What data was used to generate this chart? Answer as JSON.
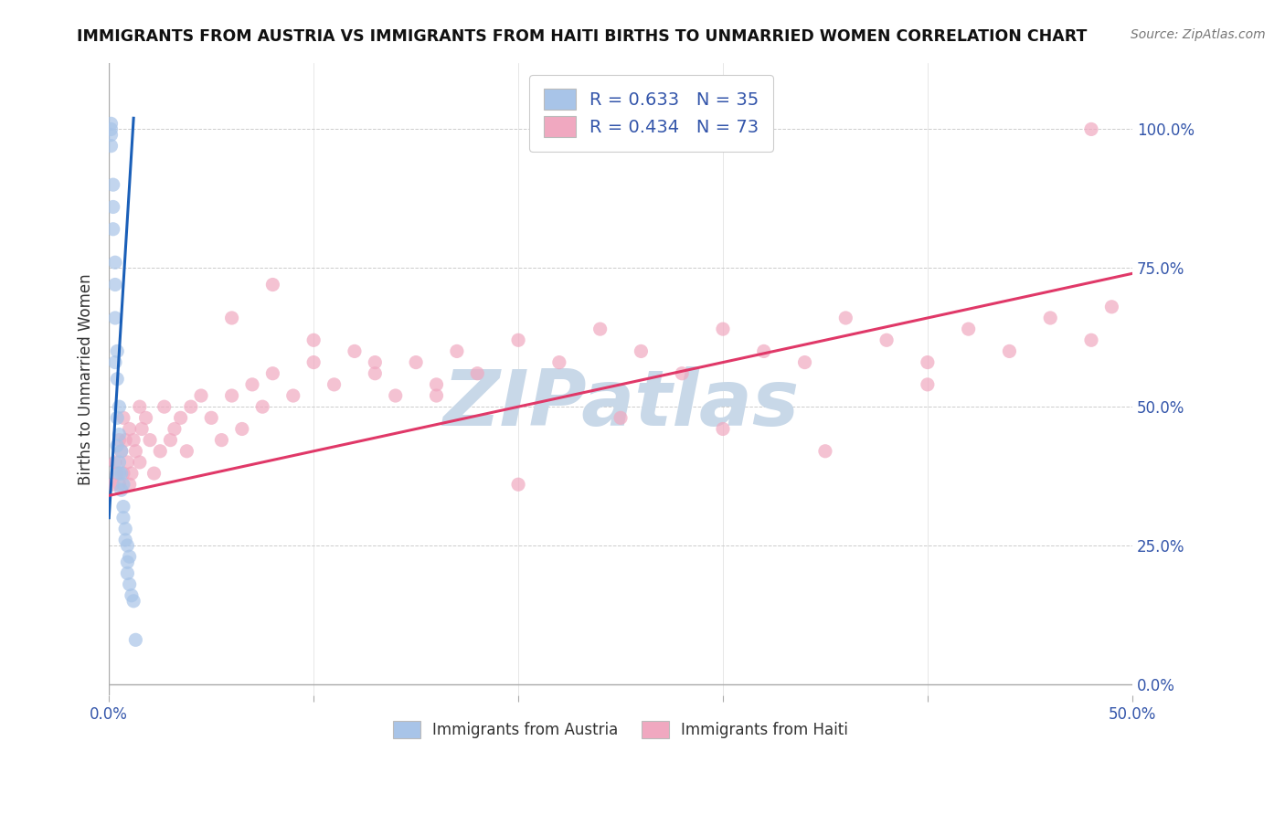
{
  "title": "IMMIGRANTS FROM AUSTRIA VS IMMIGRANTS FROM HAITI BIRTHS TO UNMARRIED WOMEN CORRELATION CHART",
  "source": "Source: ZipAtlas.com",
  "ylabel": "Births to Unmarried Women",
  "xlim": [
    0,
    0.5
  ],
  "ylim": [
    -0.02,
    1.12
  ],
  "ytick_values": [
    0,
    0.25,
    0.5,
    0.75,
    1.0
  ],
  "ytick_labels": [
    "0.0%",
    "25.0%",
    "50.0%",
    "75.0%",
    "100.0%"
  ],
  "xtick_values": [
    0,
    0.1,
    0.2,
    0.3,
    0.4,
    0.5
  ],
  "xtick_edge_labels": {
    "0": "0.0%",
    "0.5": "50.0%"
  },
  "grid_color": "#cccccc",
  "background_color": "#ffffff",
  "watermark_text": "ZIPatlas",
  "watermark_color": "#c8d8e8",
  "legend_label1": "R = 0.633   N = 35",
  "legend_label2": "R = 0.434   N = 73",
  "legend_bottom_label1": "Immigrants from Austria",
  "legend_bottom_label2": "Immigrants from Haiti",
  "austria_color": "#a8c4e8",
  "haiti_color": "#f0a8c0",
  "austria_line_color": "#1a5fb8",
  "haiti_line_color": "#e03868",
  "austria_line_x": [
    0.0,
    0.012
  ],
  "austria_line_y": [
    0.3,
    1.02
  ],
  "haiti_line_x": [
    0.0,
    0.5
  ],
  "haiti_line_y": [
    0.34,
    0.74
  ],
  "austria_scatter_x": [
    0.001,
    0.001,
    0.001,
    0.001,
    0.002,
    0.002,
    0.002,
    0.003,
    0.003,
    0.003,
    0.003,
    0.004,
    0.004,
    0.004,
    0.004,
    0.005,
    0.005,
    0.005,
    0.005,
    0.006,
    0.006,
    0.006,
    0.007,
    0.007,
    0.007,
    0.008,
    0.008,
    0.009,
    0.009,
    0.009,
    0.01,
    0.01,
    0.011,
    0.012,
    0.013
  ],
  "austria_scatter_y": [
    0.97,
    0.99,
    1.0,
    1.01,
    0.82,
    0.86,
    0.9,
    0.72,
    0.76,
    0.66,
    0.58,
    0.6,
    0.55,
    0.48,
    0.43,
    0.5,
    0.45,
    0.4,
    0.38,
    0.42,
    0.35,
    0.38,
    0.36,
    0.32,
    0.3,
    0.28,
    0.26,
    0.25,
    0.22,
    0.2,
    0.23,
    0.18,
    0.16,
    0.15,
    0.08
  ],
  "haiti_scatter_x": [
    0.002,
    0.003,
    0.004,
    0.005,
    0.005,
    0.006,
    0.007,
    0.007,
    0.008,
    0.009,
    0.01,
    0.01,
    0.011,
    0.012,
    0.013,
    0.015,
    0.015,
    0.016,
    0.018,
    0.02,
    0.022,
    0.025,
    0.027,
    0.03,
    0.032,
    0.035,
    0.038,
    0.04,
    0.045,
    0.05,
    0.055,
    0.06,
    0.065,
    0.07,
    0.075,
    0.08,
    0.09,
    0.1,
    0.11,
    0.12,
    0.13,
    0.14,
    0.15,
    0.16,
    0.17,
    0.18,
    0.2,
    0.22,
    0.24,
    0.26,
    0.28,
    0.3,
    0.32,
    0.34,
    0.36,
    0.38,
    0.4,
    0.42,
    0.44,
    0.46,
    0.48,
    0.49,
    0.06,
    0.08,
    0.1,
    0.13,
    0.16,
    0.2,
    0.25,
    0.3,
    0.35,
    0.4,
    0.48
  ],
  "haiti_scatter_y": [
    0.36,
    0.4,
    0.38,
    0.44,
    0.36,
    0.42,
    0.48,
    0.38,
    0.44,
    0.4,
    0.36,
    0.46,
    0.38,
    0.44,
    0.42,
    0.5,
    0.4,
    0.46,
    0.48,
    0.44,
    0.38,
    0.42,
    0.5,
    0.44,
    0.46,
    0.48,
    0.42,
    0.5,
    0.52,
    0.48,
    0.44,
    0.52,
    0.46,
    0.54,
    0.5,
    0.56,
    0.52,
    0.58,
    0.54,
    0.6,
    0.56,
    0.52,
    0.58,
    0.54,
    0.6,
    0.56,
    0.62,
    0.58,
    0.64,
    0.6,
    0.56,
    0.64,
    0.6,
    0.58,
    0.66,
    0.62,
    0.58,
    0.64,
    0.6,
    0.66,
    0.62,
    0.68,
    0.66,
    0.72,
    0.62,
    0.58,
    0.52,
    0.36,
    0.48,
    0.46,
    0.42,
    0.54,
    1.0
  ]
}
